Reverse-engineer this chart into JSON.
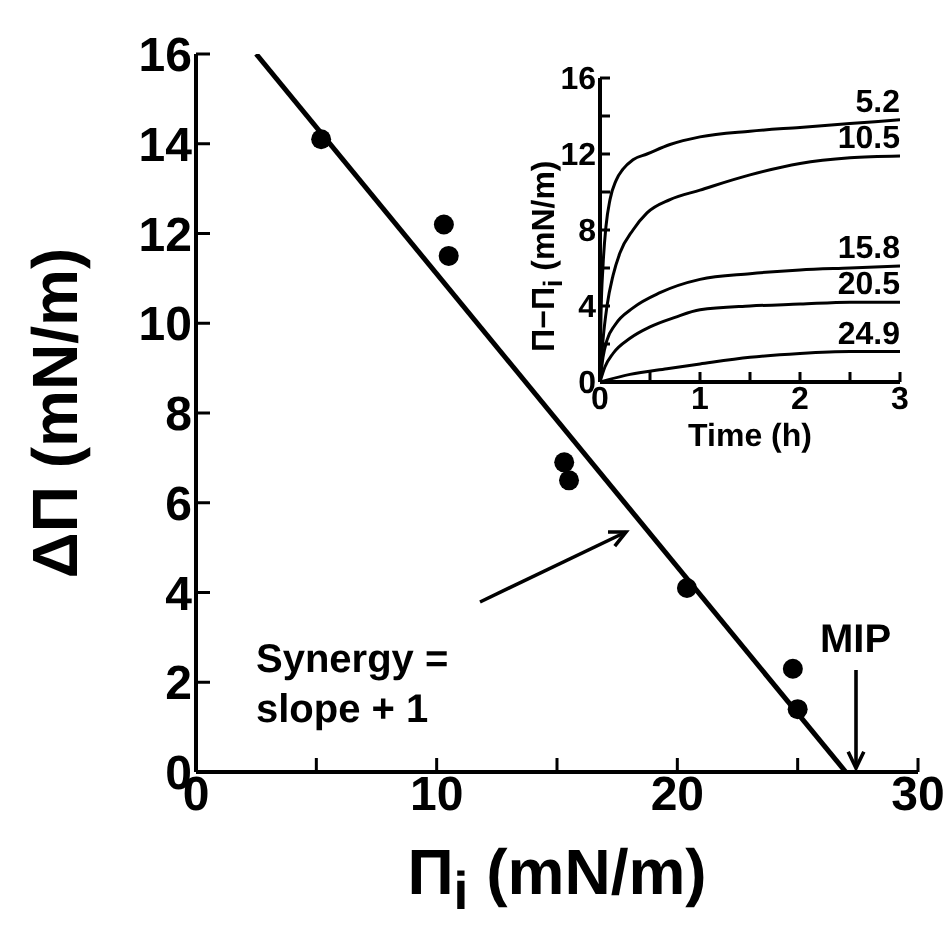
{
  "chart_data": [
    {
      "type": "scatter",
      "xlabel": "Π$_{i}$ (mN/m)",
      "ylabel": "ΔΠ (mN/m)",
      "xlim": [
        0,
        30
      ],
      "ylim": [
        0,
        16
      ],
      "xticks": [
        0,
        {
          "value": 5,
          "label": null
        },
        10,
        {
          "value": 15,
          "label": null
        },
        20,
        {
          "value": 25,
          "label": null
        },
        30
      ],
      "yticks": [
        0,
        2,
        4,
        6,
        8,
        10,
        12,
        14,
        16
      ],
      "series": [
        {
          "color": "#000000",
          "marker": "circle",
          "x": [
            5.2,
            10.3,
            10.5,
            15.3,
            15.5,
            20.4,
            24.8,
            25.0
          ],
          "values": [
            14.1,
            12.2,
            11.5,
            6.9,
            6.5,
            4.1,
            2.3,
            1.4
          ]
        },
        {
          "type": "line",
          "color": "#000000",
          "marker": "none",
          "x": [
            2.5,
            27.0
          ],
          "values": [
            16,
            0
          ]
        }
      ],
      "annotations": [
        "Synergy = slope + 1",
        "MIP"
      ]
    },
    {
      "type": "line",
      "xlabel": "Time (h)",
      "ylabel": "Π−Π$_{i}$ (mN/m)",
      "xlim": [
        0,
        3
      ],
      "ylim": [
        0,
        16
      ],
      "xticks": [
        0,
        {
          "value": 0.5,
          "label": null
        },
        1,
        {
          "value": 1.5,
          "label": null
        },
        2,
        {
          "value": 2.5,
          "label": null
        },
        3
      ],
      "yticks": [
        0,
        {
          "value": 2,
          "label": null
        },
        4,
        {
          "value": 6,
          "label": null
        },
        8,
        {
          "value": 10,
          "label": null
        },
        12,
        {
          "value": 14,
          "label": null
        },
        16
      ],
      "series": [
        {
          "name": "5.2",
          "color": "#000000",
          "x": [
            0,
            0.01,
            0.03,
            0.06,
            0.1,
            0.16,
            0.23,
            0.33,
            0.47,
            0.7,
            1.0,
            1.5,
            2.0,
            2.5,
            3.0
          ],
          "values": [
            0,
            3.5,
            6.1,
            8.2,
            9.6,
            10.6,
            11.2,
            11.7,
            12.0,
            12.5,
            12.9,
            13.2,
            13.4,
            13.6,
            13.8
          ]
        },
        {
          "name": "10.5",
          "color": "#000000",
          "x": [
            0,
            0.03,
            0.07,
            0.13,
            0.2,
            0.33,
            0.47,
            0.7,
            1.0,
            1.5,
            2.0,
            2.5,
            3.0
          ],
          "values": [
            0,
            2.2,
            4.0,
            5.6,
            6.8,
            8.0,
            8.9,
            9.6,
            10.1,
            10.9,
            11.5,
            11.8,
            11.9
          ]
        },
        {
          "name": "15.8",
          "color": "#000000",
          "x": [
            0,
            0.03,
            0.07,
            0.15,
            0.33,
            0.6,
            1.0,
            1.5,
            2.0,
            2.5,
            3.0
          ],
          "values": [
            0,
            1.3,
            2.2,
            3.0,
            3.9,
            4.7,
            5.4,
            5.7,
            5.9,
            6.0,
            6.1
          ]
        },
        {
          "name": "20.5",
          "color": "#000000",
          "x": [
            0,
            0.05,
            0.13,
            0.3,
            0.5,
            0.75,
            1.0,
            1.5,
            2.0,
            2.5,
            3.0
          ],
          "values": [
            0,
            0.8,
            1.5,
            2.3,
            2.9,
            3.4,
            3.8,
            4.0,
            4.1,
            4.2,
            4.2
          ]
        },
        {
          "name": "24.9",
          "color": "#000000",
          "x": [
            0,
            0.3,
            0.67,
            1.0,
            1.5,
            2.0,
            2.5,
            3.0
          ],
          "values": [
            0,
            0.4,
            0.7,
            0.95,
            1.3,
            1.5,
            1.6,
            1.6
          ]
        }
      ]
    }
  ]
}
